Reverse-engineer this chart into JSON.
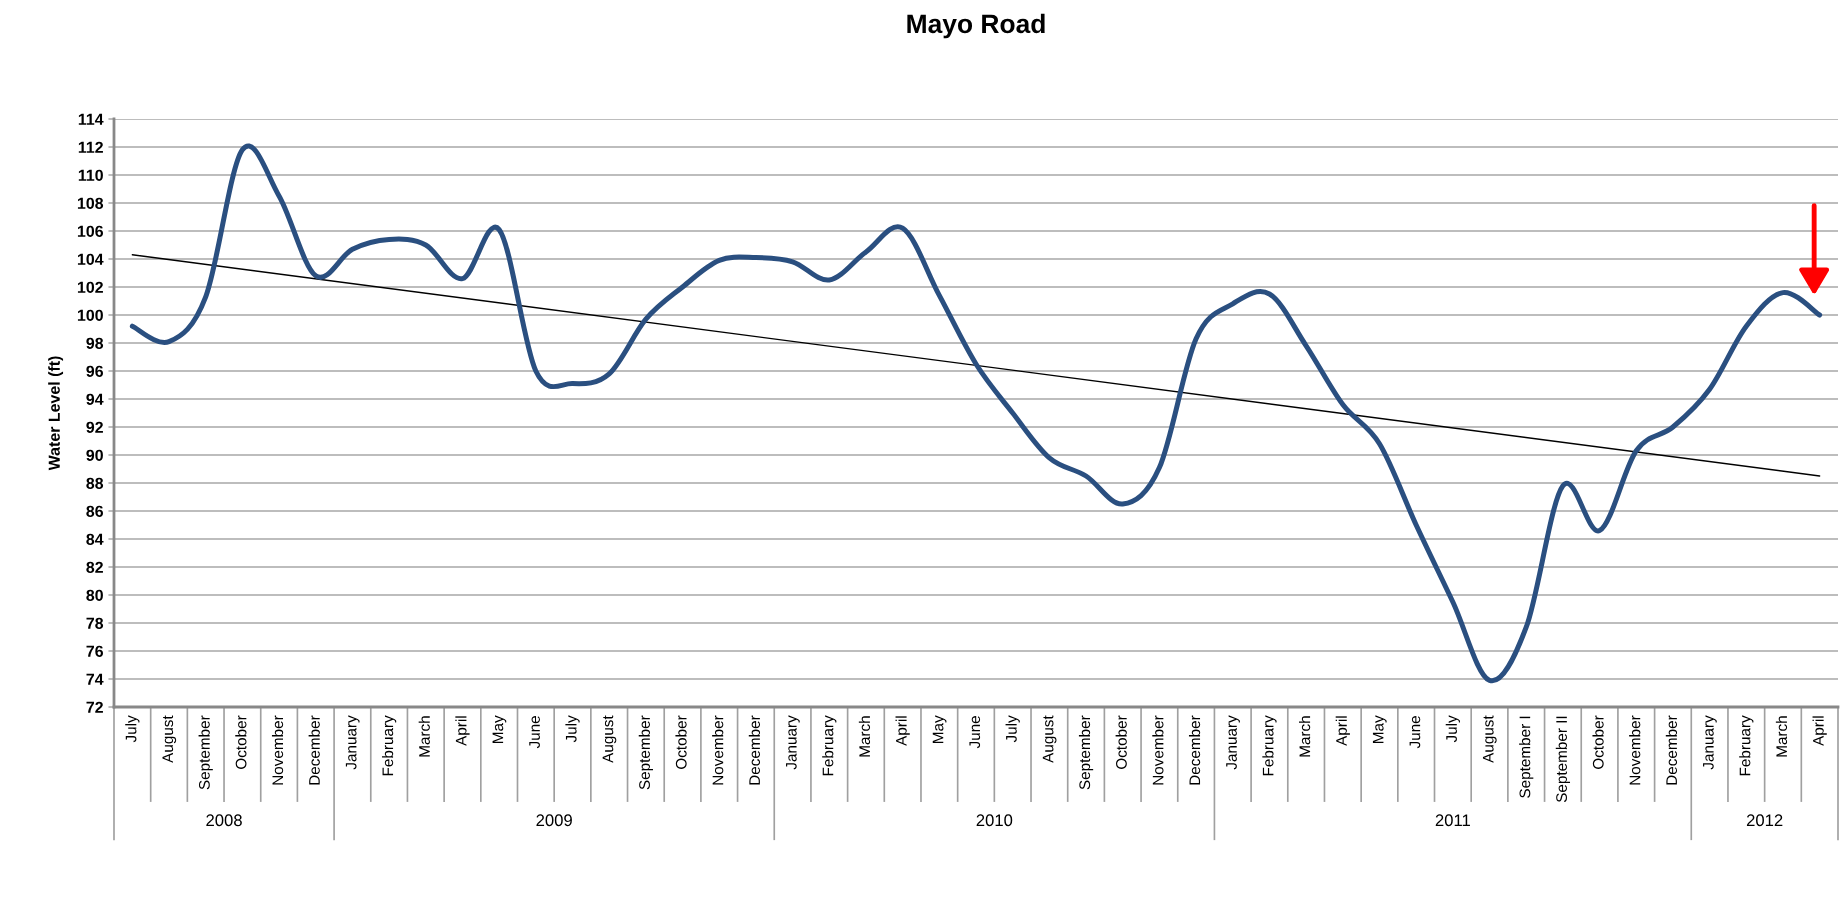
{
  "chart_data": {
    "type": "line",
    "title": "Mayo Road",
    "ylabel": "Water Level (ft)",
    "categories": [
      "July",
      "August",
      "September",
      "October",
      "November",
      "December",
      "January",
      "February",
      "March",
      "April",
      "May",
      "June",
      "July",
      "August",
      "September",
      "October",
      "November",
      "December",
      "January",
      "February",
      "March",
      "April",
      "May",
      "June",
      "July",
      "August",
      "September",
      "October",
      "November",
      "December",
      "January",
      "February",
      "March",
      "April",
      "May",
      "June",
      "July",
      "August",
      "September I",
      "September II",
      "October",
      "November",
      "December",
      "January",
      "February",
      "March",
      "April"
    ],
    "series": [
      {
        "color": "#2a4f80",
        "values": [
          99.2,
          98.1,
          101.3,
          111.8,
          108.5,
          102.8,
          104.7,
          105.4,
          105.0,
          102.6,
          106.1,
          96.0,
          95.1,
          95.8,
          99.7,
          102.0,
          103.9,
          104.1,
          103.8,
          102.5,
          104.5,
          106.2,
          101.4,
          96.5,
          93.0,
          89.8,
          88.5,
          86.5,
          89.1,
          98.3,
          100.8,
          101.5,
          97.8,
          93.6,
          90.8,
          85.0,
          79.5,
          73.9,
          77.7,
          87.8,
          84.6,
          90.3,
          92.0,
          94.7,
          99.2,
          101.6,
          100.0
        ]
      },
      {
        "type": "line",
        "color": "#000000",
        "values": [
          104.3,
          null,
          null,
          null,
          null,
          null,
          null,
          null,
          null,
          null,
          null,
          null,
          null,
          null,
          null,
          null,
          null,
          null,
          null,
          null,
          null,
          null,
          null,
          null,
          null,
          null,
          null,
          null,
          null,
          null,
          null,
          null,
          null,
          null,
          null,
          null,
          null,
          null,
          null,
          null,
          null,
          null,
          null,
          null,
          null,
          null,
          88.5
        ]
      }
    ],
    "annotations": [
      "2008",
      "2009",
      "2010",
      "2011",
      "2012"
    ],
    "ylim": [
      72,
      114
    ],
    "yticks": [
      72,
      74,
      76,
      78,
      80,
      82,
      84,
      86,
      88,
      90,
      92,
      94,
      96,
      98,
      100,
      102,
      104,
      106,
      108,
      110,
      112,
      114
    ],
    "grid": "y"
  }
}
